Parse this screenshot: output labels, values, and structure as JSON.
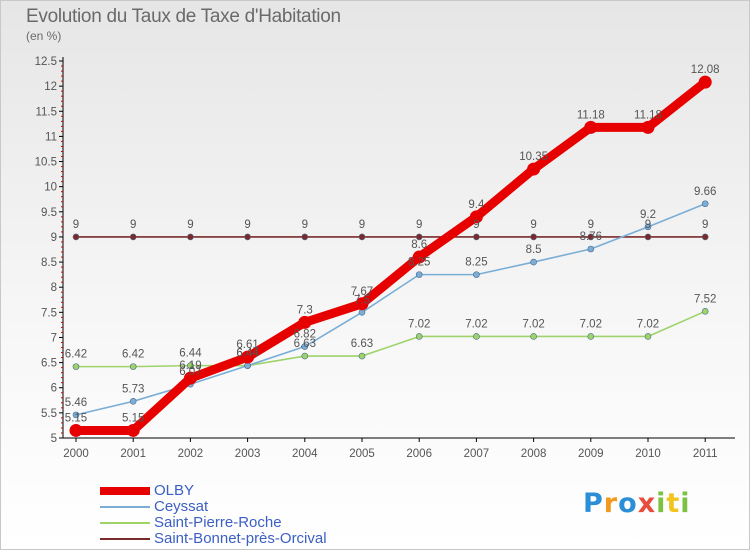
{
  "chart_data": {
    "type": "line",
    "title": "Evolution du Taux de Taxe d'Habitation",
    "subtitle": "(en %)",
    "xlabel": "",
    "ylabel": "",
    "categories": [
      "2000",
      "2001",
      "2002",
      "2003",
      "2004",
      "2005",
      "2006",
      "2007",
      "2008",
      "2009",
      "2010",
      "2011"
    ],
    "ylim": [
      5,
      12.5
    ],
    "yticks": [
      5,
      5.5,
      6,
      6.5,
      7,
      7.5,
      8,
      8.5,
      9,
      9.5,
      10,
      10.5,
      11,
      11.5,
      12,
      12.5
    ],
    "ytick_labels": [
      "5",
      "5.5",
      "6",
      "6.5",
      "7",
      "7.5",
      "8",
      "8.5",
      "9",
      "9.5",
      "10",
      "10.5",
      "11",
      "11.5",
      "12",
      "12.5"
    ],
    "grid": false,
    "legend_position": "bottom-left",
    "series": [
      {
        "name": "OLBY",
        "color": "#e60000",
        "values": [
          5.15,
          5.15,
          6.19,
          6.61,
          7.3,
          7.67,
          8.6,
          9.4,
          10.35,
          11.18,
          11.18,
          12.08
        ],
        "labels": [
          "5.15",
          "5.15",
          "6.19",
          "6.61",
          "7.3",
          "7.67",
          "8.6",
          "9.4",
          "10.35",
          "11.18",
          "11.18",
          "12.08"
        ]
      },
      {
        "name": "Ceyssat",
        "color": "#7aaed6",
        "values": [
          5.46,
          5.73,
          6.07,
          6.44,
          6.82,
          7.5,
          8.25,
          8.25,
          8.5,
          8.76,
          9.2,
          9.66
        ],
        "labels": [
          "5.46",
          "5.73",
          "6.07",
          "6.44",
          "6.82",
          "7.5",
          "8.25",
          "8.25",
          "8.5",
          "8.76",
          "9.2",
          "9.66"
        ]
      },
      {
        "name": "Saint-Pierre-Roche",
        "color": "#9ed36a",
        "values": [
          6.42,
          6.42,
          6.44,
          6.44,
          6.63,
          6.63,
          7.02,
          7.02,
          7.02,
          7.02,
          7.02,
          7.52
        ],
        "labels": [
          "6.42",
          "6.42",
          "6.44",
          "6.44",
          "6.63",
          "6.63",
          "7.02",
          "7.02",
          "7.02",
          "7.02",
          "7.02",
          "7.52"
        ]
      },
      {
        "name": "Saint-Bonnet-près-Orcival",
        "color": "#7a2a2a",
        "values": [
          9,
          9,
          9,
          9,
          9,
          9,
          9,
          9,
          9,
          9,
          9,
          9
        ],
        "labels": [
          "9",
          "9",
          "9",
          "9",
          "9",
          "9",
          "9",
          "9",
          "9",
          "9",
          "9",
          "9"
        ]
      }
    ]
  },
  "logo": {
    "letters": [
      {
        "ch": "P",
        "color": "#2a8fd6"
      },
      {
        "ch": "r",
        "color": "#f29a1f"
      },
      {
        "ch": "o",
        "color": "#2a8fd6"
      },
      {
        "ch": "x",
        "color": "#e94b3c"
      },
      {
        "ch": "i",
        "color": "#7cc142"
      },
      {
        "ch": "t",
        "color": "#f2c41f"
      },
      {
        "ch": "i",
        "color": "#7cc142"
      }
    ]
  }
}
